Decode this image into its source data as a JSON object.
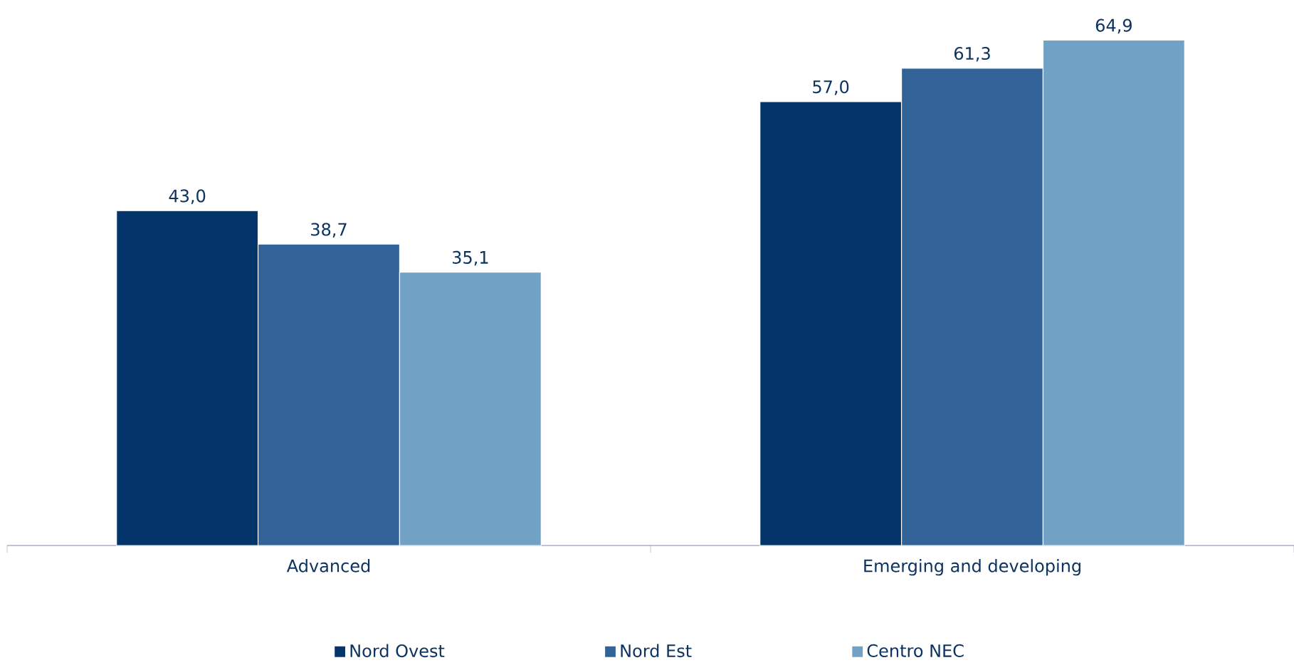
{
  "chart_data": {
    "type": "bar",
    "categories": [
      "Advanced",
      "Emerging and developing"
    ],
    "series": [
      {
        "name": "Nord Ovest",
        "color": "#03356a",
        "values": [
          43.0,
          57.0
        ],
        "value_labels": [
          "43,0",
          "57,0"
        ]
      },
      {
        "name": "Nord Est",
        "color": "#316399",
        "values": [
          38.7,
          61.3
        ],
        "value_labels": [
          "38,7",
          "61,3"
        ]
      },
      {
        "name": "Centro NEC",
        "color": "#71a2c6",
        "values": [
          35.1,
          64.9
        ],
        "value_labels": [
          "35,1",
          "64,9"
        ]
      }
    ],
    "legend": "bottom"
  }
}
